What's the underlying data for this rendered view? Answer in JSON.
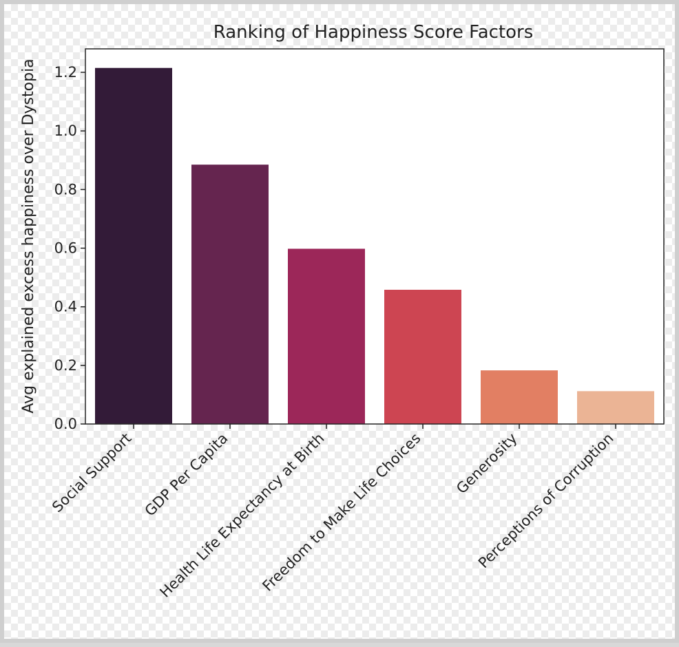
{
  "chart_data": {
    "type": "bar",
    "title": "Ranking of Happiness Score Factors",
    "xlabel": "",
    "ylabel": "Avg explained excess happiness over Dystopia",
    "categories": [
      "Social Support",
      "GDP Per Capita",
      "Health Life Expectancy at Birth",
      "Freedom to Make Life Choices",
      "Generosity",
      "Perceptions of Corruption"
    ],
    "values": [
      1.215,
      0.885,
      0.598,
      0.458,
      0.183,
      0.112
    ],
    "colors": [
      "#331b38",
      "#65254f",
      "#9c2759",
      "#cd4552",
      "#e27f63",
      "#ebb495"
    ],
    "ylim": [
      0,
      1.28
    ],
    "yticks": [
      0.0,
      0.2,
      0.4,
      0.6,
      0.8,
      1.0,
      1.2
    ],
    "ytick_labels": [
      "0.0",
      "0.2",
      "0.4",
      "0.6",
      "0.8",
      "1.0",
      "1.2"
    ],
    "grid": false,
    "legend": "none"
  }
}
